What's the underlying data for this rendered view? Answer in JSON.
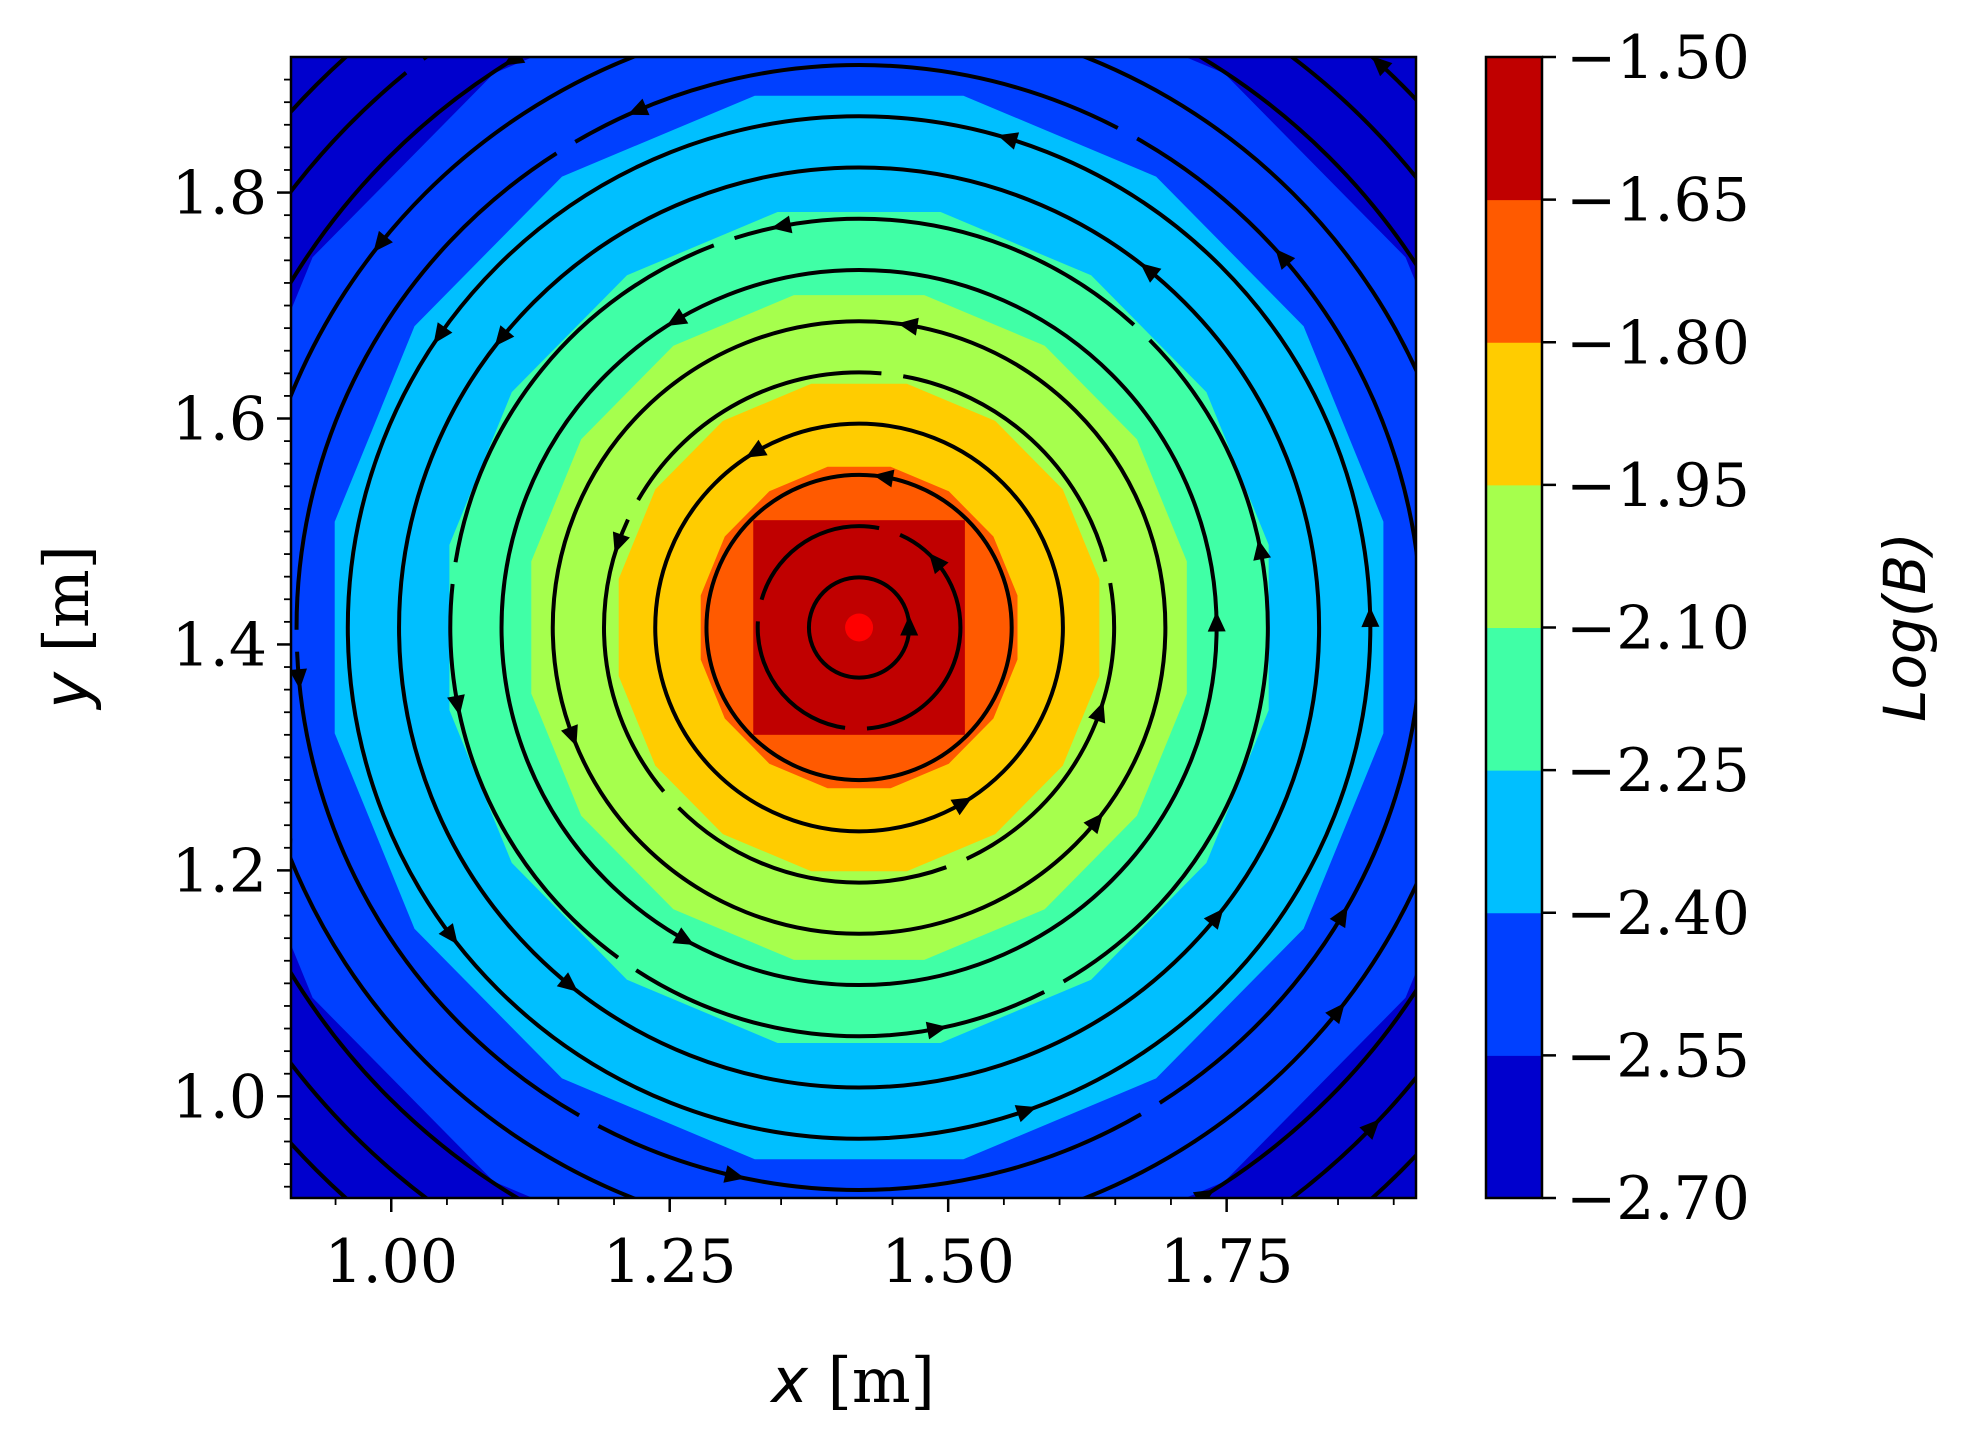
{
  "chart_data": {
    "type": "heatmap",
    "subtype": "filled contour with streamlines",
    "title": "",
    "xlabel_var": "x",
    "ylabel_var": "y",
    "unit": "[m]",
    "xlim": [
      0.91,
      1.92
    ],
    "ylim": [
      0.91,
      1.92
    ],
    "x_ticks": [
      1.0,
      1.25,
      1.5,
      1.75
    ],
    "x_tick_labels": [
      "1.00",
      "1.25",
      "1.50",
      "1.75"
    ],
    "y_ticks": [
      1.0,
      1.2,
      1.4,
      1.6,
      1.8
    ],
    "y_tick_labels": [
      "1.0",
      "1.2",
      "1.4",
      "1.6",
      "1.8"
    ],
    "center": [
      1.42,
      1.415
    ],
    "colorbar": {
      "label": "Log(B)",
      "levels": [
        -2.7,
        -2.55,
        -2.4,
        -2.25,
        -2.1,
        -1.95,
        -1.8,
        -1.65,
        -1.5
      ],
      "tick_labels": [
        "−2.70",
        "−2.55",
        "−2.40",
        "−2.25",
        "−2.10",
        "−1.95",
        "−1.80",
        "−1.65",
        "−1.50"
      ],
      "colors": [
        "#0000cd",
        "#0040ff",
        "#00bfff",
        "#40ffa6",
        "#a6ff4d",
        "#ffcc00",
        "#ff5a00",
        "#c00000"
      ]
    },
    "contour_band_radii": [
      0.59,
      0.48,
      0.375,
      0.3,
      0.22,
      0.145,
      0.095
    ],
    "streamlines": {
      "direction": "counterclockwise",
      "color": "#000000"
    }
  }
}
